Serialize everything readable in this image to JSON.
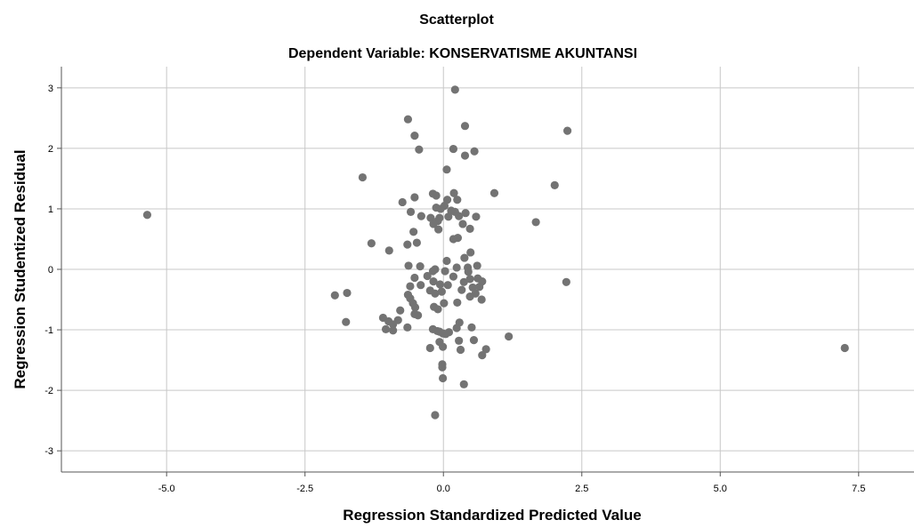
{
  "chart_data": {
    "type": "scatter",
    "title": "Scatterplot",
    "subtitle": "Dependent Variable: KONSERVATISME AKUNTANSI",
    "xlabel": "Regression Standardized Predicted Value",
    "ylabel": "Regression Studentized Residual",
    "xlim": [
      -6.9,
      8.5
    ],
    "ylim": [
      -3.35,
      3.35
    ],
    "xticks": [
      -5.0,
      -2.5,
      0.0,
      2.5,
      5.0,
      7.5
    ],
    "xtick_labels": [
      "-5.0",
      "-2.5",
      "0.0",
      "2.5",
      "5.0",
      "7.5"
    ],
    "yticks": [
      -3,
      -2,
      -1,
      0,
      1,
      2,
      3
    ],
    "ytick_labels": [
      "-3",
      "-2",
      "-1",
      "0",
      "1",
      "2",
      "3"
    ],
    "grid": true,
    "colors": {
      "point": "#737373",
      "grid": "#c8c8c8",
      "axis": "#555555",
      "background": "#ffffff"
    },
    "points": [
      [
        -5.35,
        0.9
      ],
      [
        0.21,
        2.97
      ],
      [
        -0.64,
        2.48
      ],
      [
        -0.52,
        2.21
      ],
      [
        0.39,
        2.37
      ],
      [
        2.24,
        2.29
      ],
      [
        0.18,
        1.99
      ],
      [
        -0.44,
        1.98
      ],
      [
        0.56,
        1.95
      ],
      [
        0.39,
        1.88
      ],
      [
        0.06,
        1.65
      ],
      [
        -1.46,
        1.52
      ],
      [
        2.01,
        1.39
      ],
      [
        0.92,
        1.26
      ],
      [
        0.19,
        1.26
      ],
      [
        -0.19,
        1.25
      ],
      [
        -0.13,
        1.22
      ],
      [
        -0.52,
        1.19
      ],
      [
        0.25,
        1.15
      ],
      [
        0.07,
        1.15
      ],
      [
        -0.74,
        1.11
      ],
      [
        0.02,
        1.05
      ],
      [
        -0.05,
        1.0
      ],
      [
        -0.13,
        1.02
      ],
      [
        0.21,
        0.95
      ],
      [
        0.14,
        0.97
      ],
      [
        -0.59,
        0.95
      ],
      [
        0.4,
        0.93
      ],
      [
        0.28,
        0.88
      ],
      [
        -0.4,
        0.88
      ],
      [
        0.59,
        0.87
      ],
      [
        0.09,
        0.87
      ],
      [
        -0.07,
        0.85
      ],
      [
        -0.23,
        0.85
      ],
      [
        -0.1,
        0.8
      ],
      [
        -0.18,
        0.75
      ],
      [
        0.35,
        0.75
      ],
      [
        1.67,
        0.78
      ],
      [
        0.48,
        0.67
      ],
      [
        -0.09,
        0.66
      ],
      [
        -0.54,
        0.62
      ],
      [
        0.26,
        0.52
      ],
      [
        0.18,
        0.5
      ],
      [
        -0.48,
        0.44
      ],
      [
        -1.3,
        0.43
      ],
      [
        -0.65,
        0.41
      ],
      [
        -0.98,
        0.31
      ],
      [
        0.49,
        0.28
      ],
      [
        0.38,
        0.19
      ],
      [
        0.06,
        0.14
      ],
      [
        -0.42,
        0.05
      ],
      [
        -0.63,
        0.06
      ],
      [
        0.24,
        0.03
      ],
      [
        0.61,
        0.06
      ],
      [
        0.44,
        0.03
      ],
      [
        -0.15,
        0.0
      ],
      [
        0.03,
        -0.03
      ],
      [
        -0.19,
        -0.03
      ],
      [
        0.45,
        -0.04
      ],
      [
        -0.29,
        -0.11
      ],
      [
        -0.52,
        -0.14
      ],
      [
        0.18,
        -0.12
      ],
      [
        0.62,
        -0.15
      ],
      [
        0.48,
        -0.16
      ],
      [
        0.7,
        -0.2
      ],
      [
        -0.18,
        -0.2
      ],
      [
        0.37,
        -0.21
      ],
      [
        -0.06,
        -0.25
      ],
      [
        0.08,
        -0.26
      ],
      [
        -0.6,
        -0.28
      ],
      [
        -0.41,
        -0.26
      ],
      [
        0.65,
        -0.29
      ],
      [
        0.53,
        -0.3
      ],
      [
        0.33,
        -0.34
      ],
      [
        -0.24,
        -0.35
      ],
      [
        -0.03,
        -0.37
      ],
      [
        -0.15,
        -0.4
      ],
      [
        0.58,
        -0.4
      ],
      [
        -0.64,
        -0.42
      ],
      [
        -1.74,
        -0.39
      ],
      [
        -1.96,
        -0.43
      ],
      [
        0.48,
        -0.45
      ],
      [
        -0.6,
        -0.48
      ],
      [
        0.69,
        -0.5
      ],
      [
        -0.55,
        -0.56
      ],
      [
        0.01,
        -0.56
      ],
      [
        0.25,
        -0.55
      ],
      [
        -0.17,
        -0.62
      ],
      [
        -0.51,
        -0.63
      ],
      [
        -0.1,
        -0.66
      ],
      [
        -0.78,
        -0.68
      ],
      [
        -0.52,
        -0.74
      ],
      [
        -0.46,
        -0.76
      ],
      [
        -1.09,
        -0.8
      ],
      [
        -0.99,
        -0.86
      ],
      [
        -1.76,
        -0.87
      ],
      [
        -0.82,
        -0.84
      ],
      [
        0.29,
        -0.88
      ],
      [
        -0.91,
        -0.91
      ],
      [
        -0.65,
        -0.96
      ],
      [
        0.24,
        -0.97
      ],
      [
        0.51,
        -0.96
      ],
      [
        -1.04,
        -0.99
      ],
      [
        -0.19,
        -0.99
      ],
      [
        -0.07,
        -1.03
      ],
      [
        -0.11,
        -1.02
      ],
      [
        -0.91,
        -1.01
      ],
      [
        0.1,
        -1.04
      ],
      [
        -0.01,
        -1.06
      ],
      [
        0.04,
        -1.07
      ],
      [
        1.18,
        -1.11
      ],
      [
        0.28,
        -1.18
      ],
      [
        0.55,
        -1.17
      ],
      [
        -0.07,
        -1.2
      ],
      [
        -0.01,
        -1.28
      ],
      [
        -0.24,
        -1.3
      ],
      [
        0.31,
        -1.33
      ],
      [
        7.25,
        -1.3
      ],
      [
        0.77,
        -1.32
      ],
      [
        0.7,
        -1.42
      ],
      [
        -0.02,
        -1.57
      ],
      [
        -0.02,
        -1.62
      ],
      [
        -0.01,
        -1.8
      ],
      [
        0.37,
        -1.9
      ],
      [
        -0.15,
        -2.41
      ],
      [
        2.22,
        -0.21
      ]
    ]
  }
}
